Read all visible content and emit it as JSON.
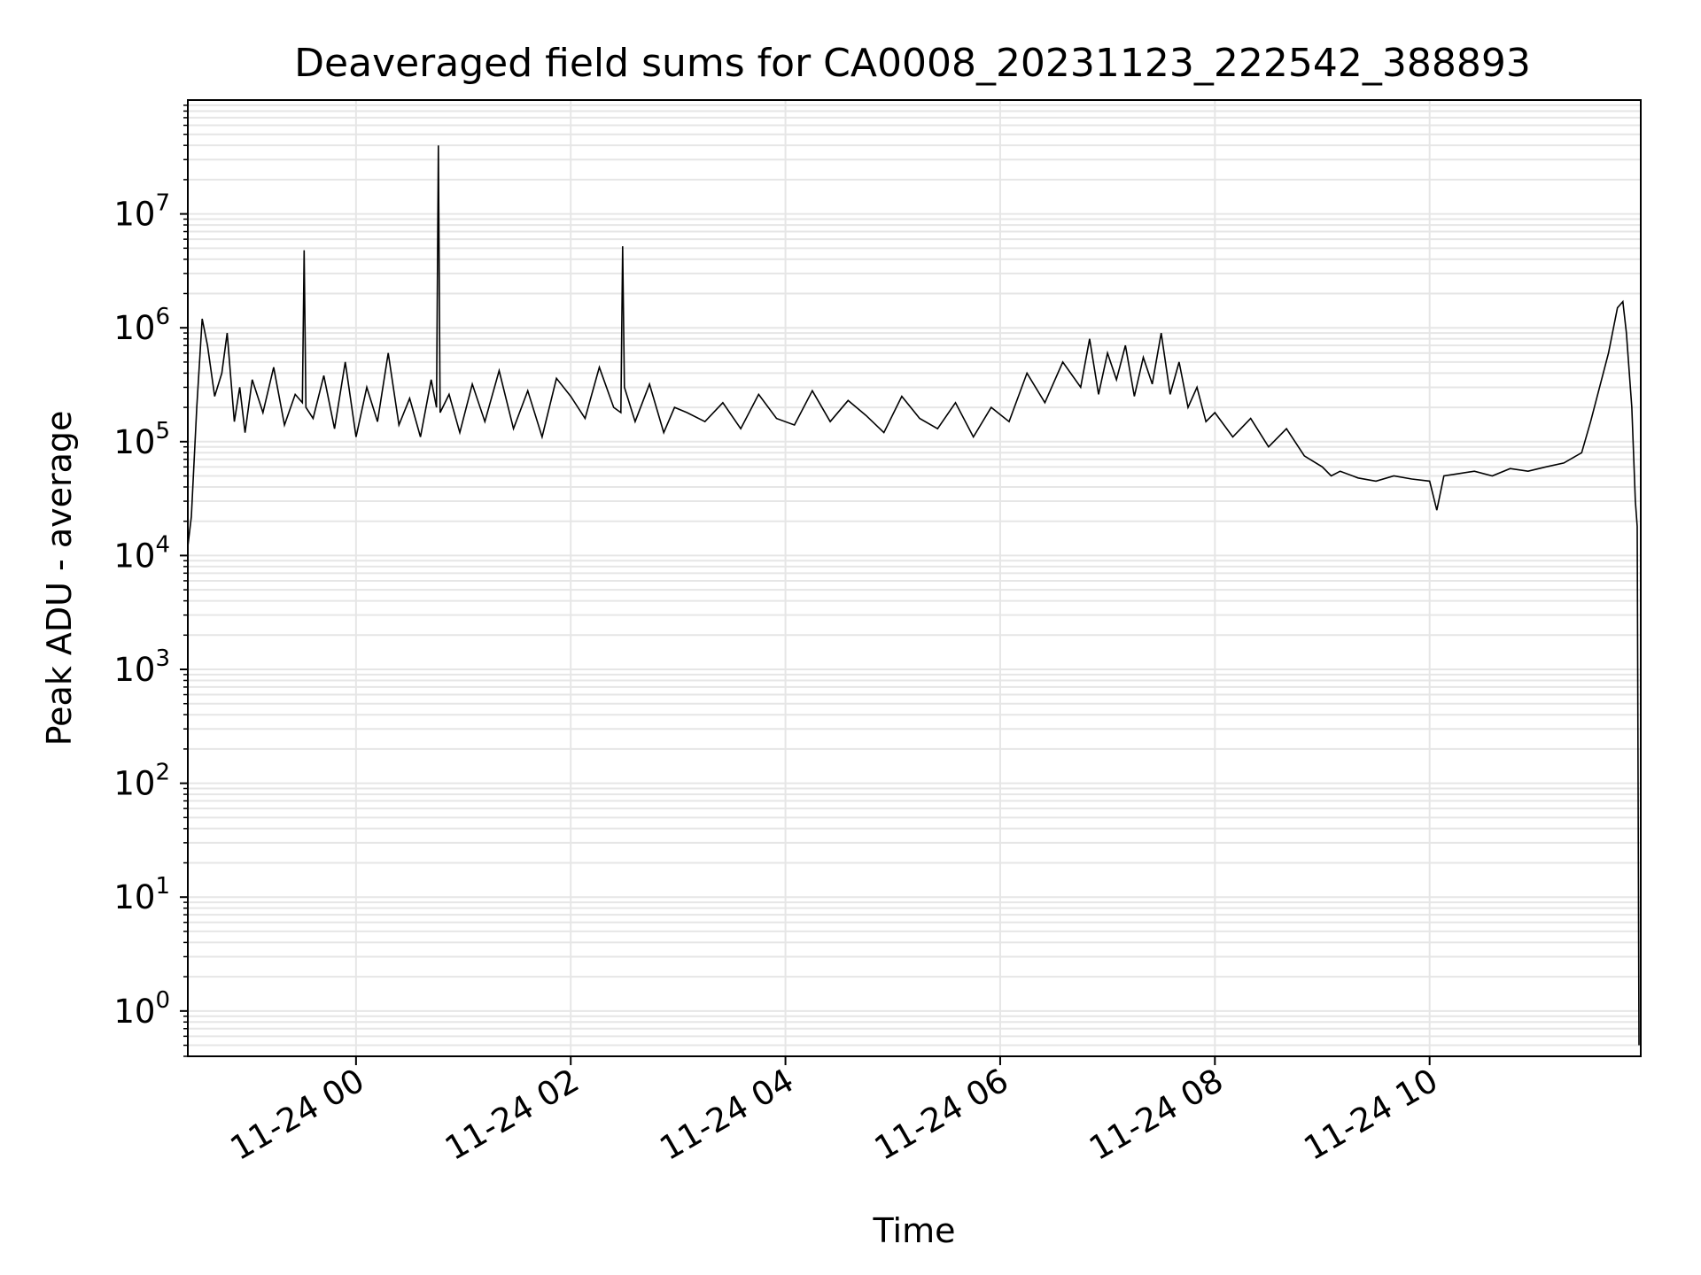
{
  "chart_data": {
    "type": "line",
    "title": "Deaveraged field sums for CA0008_20231123_222542_388893",
    "xlabel": "Time",
    "ylabel": "Peak ADU - average",
    "y_scale": "log",
    "ylim": [
      0.4,
      100000000
    ],
    "xlim": [
      "2023-11-23T22:26",
      "2023-11-24T11:58"
    ],
    "grid": true,
    "x_ticks": [
      {
        "value": "2023-11-24T00:00",
        "label": "11-24 00"
      },
      {
        "value": "2023-11-24T02:00",
        "label": "11-24 02"
      },
      {
        "value": "2023-11-24T04:00",
        "label": "11-24 04"
      },
      {
        "value": "2023-11-24T06:00",
        "label": "11-24 06"
      },
      {
        "value": "2023-11-24T08:00",
        "label": "11-24 08"
      },
      {
        "value": "2023-11-24T10:00",
        "label": "11-24 10"
      }
    ],
    "y_ticks": [
      {
        "value": 1,
        "base": "10",
        "exp": "0"
      },
      {
        "value": 10,
        "base": "10",
        "exp": "1"
      },
      {
        "value": 100,
        "base": "10",
        "exp": "2"
      },
      {
        "value": 1000,
        "base": "10",
        "exp": "3"
      },
      {
        "value": 10000,
        "base": "10",
        "exp": "4"
      },
      {
        "value": 100000,
        "base": "10",
        "exp": "5"
      },
      {
        "value": 1000000,
        "base": "10",
        "exp": "6"
      },
      {
        "value": 10000000,
        "base": "10",
        "exp": "7"
      }
    ],
    "colors": {
      "line": "#000000",
      "grid": "#e6e6e6",
      "axes": "#000000"
    },
    "series": [
      {
        "x": [
          "2023-11-23T22:26",
          "2023-11-23T22:28",
          "2023-11-23T22:31",
          "2023-11-23T22:34",
          "2023-11-23T22:37",
          "2023-11-23T22:41",
          "2023-11-23T22:45",
          "2023-11-23T22:48",
          "2023-11-23T22:52",
          "2023-11-23T22:55",
          "2023-11-23T22:58",
          "2023-11-23T23:02",
          "2023-11-23T23:08",
          "2023-11-23T23:14",
          "2023-11-23T23:20",
          "2023-11-23T23:26",
          "2023-11-23T23:30",
          "2023-11-23T23:31",
          "2023-11-23T23:32",
          "2023-11-23T23:36",
          "2023-11-23T23:42",
          "2023-11-23T23:48",
          "2023-11-23T23:54",
          "2023-11-24T00:00",
          "2023-11-24T00:06",
          "2023-11-24T00:12",
          "2023-11-24T00:18",
          "2023-11-24T00:24",
          "2023-11-24T00:30",
          "2023-11-24T00:36",
          "2023-11-24T00:42",
          "2023-11-24T00:45",
          "2023-11-24T00:46",
          "2023-11-24T00:47",
          "2023-11-24T00:52",
          "2023-11-24T00:58",
          "2023-11-24T01:05",
          "2023-11-24T01:12",
          "2023-11-24T01:20",
          "2023-11-24T01:28",
          "2023-11-24T01:36",
          "2023-11-24T01:44",
          "2023-11-24T01:52",
          "2023-11-24T02:00",
          "2023-11-24T02:08",
          "2023-11-24T02:16",
          "2023-11-24T02:24",
          "2023-11-24T02:28",
          "2023-11-24T02:29",
          "2023-11-24T02:30",
          "2023-11-24T02:36",
          "2023-11-24T02:44",
          "2023-11-24T02:52",
          "2023-11-24T02:58",
          "2023-11-24T03:05",
          "2023-11-24T03:15",
          "2023-11-24T03:25",
          "2023-11-24T03:35",
          "2023-11-24T03:45",
          "2023-11-24T03:55",
          "2023-11-24T04:05",
          "2023-11-24T04:15",
          "2023-11-24T04:25",
          "2023-11-24T04:35",
          "2023-11-24T04:45",
          "2023-11-24T04:55",
          "2023-11-24T05:05",
          "2023-11-24T05:15",
          "2023-11-24T05:25",
          "2023-11-24T05:35",
          "2023-11-24T05:45",
          "2023-11-24T05:55",
          "2023-11-24T06:05",
          "2023-11-24T06:15",
          "2023-11-24T06:25",
          "2023-11-24T06:35",
          "2023-11-24T06:45",
          "2023-11-24T06:50",
          "2023-11-24T06:55",
          "2023-11-24T07:00",
          "2023-11-24T07:05",
          "2023-11-24T07:10",
          "2023-11-24T07:15",
          "2023-11-24T07:20",
          "2023-11-24T07:25",
          "2023-11-24T07:30",
          "2023-11-24T07:35",
          "2023-11-24T07:40",
          "2023-11-24T07:45",
          "2023-11-24T07:50",
          "2023-11-24T07:55",
          "2023-11-24T08:00",
          "2023-11-24T08:10",
          "2023-11-24T08:20",
          "2023-11-24T08:30",
          "2023-11-24T08:40",
          "2023-11-24T08:50",
          "2023-11-24T09:00",
          "2023-11-24T09:05",
          "2023-11-24T09:10",
          "2023-11-24T09:20",
          "2023-11-24T09:30",
          "2023-11-24T09:40",
          "2023-11-24T09:50",
          "2023-11-24T10:00",
          "2023-11-24T10:04",
          "2023-11-24T10:08",
          "2023-11-24T10:15",
          "2023-11-24T10:25",
          "2023-11-24T10:35",
          "2023-11-24T10:45",
          "2023-11-24T10:55",
          "2023-11-24T11:05",
          "2023-11-24T11:15",
          "2023-11-24T11:25",
          "2023-11-24T11:30",
          "2023-11-24T11:35",
          "2023-11-24T11:40",
          "2023-11-24T11:45",
          "2023-11-24T11:48",
          "2023-11-24T11:50",
          "2023-11-24T11:53",
          "2023-11-24T11:55",
          "2023-11-24T11:56",
          "2023-11-24T11:57"
        ],
        "y": [
          12000,
          22000,
          200000,
          1200000,
          700000,
          250000,
          400000,
          900000,
          150000,
          300000,
          120000,
          350000,
          180000,
          450000,
          140000,
          260000,
          220000,
          4800000,
          200000,
          160000,
          380000,
          130000,
          500000,
          110000,
          300000,
          150000,
          600000,
          140000,
          240000,
          110000,
          350000,
          200000,
          40000000,
          180000,
          260000,
          120000,
          320000,
          150000,
          420000,
          130000,
          280000,
          110000,
          360000,
          250000,
          160000,
          450000,
          200000,
          180000,
          5200000,
          300000,
          150000,
          320000,
          120000,
          200000,
          180000,
          150000,
          220000,
          130000,
          260000,
          160000,
          140000,
          280000,
          150000,
          230000,
          170000,
          120000,
          250000,
          160000,
          130000,
          220000,
          110000,
          200000,
          150000,
          400000,
          220000,
          500000,
          300000,
          800000,
          260000,
          600000,
          350000,
          700000,
          250000,
          550000,
          320000,
          900000,
          260000,
          500000,
          200000,
          300000,
          150000,
          180000,
          110000,
          160000,
          90000,
          130000,
          75000,
          60000,
          50000,
          55000,
          48000,
          45000,
          50000,
          47000,
          45000,
          25000,
          50000,
          52000,
          55000,
          50000,
          58000,
          55000,
          60000,
          65000,
          80000,
          150000,
          300000,
          600000,
          1500000,
          1700000,
          900000,
          200000,
          30000,
          18000,
          0.5
        ]
      }
    ]
  }
}
